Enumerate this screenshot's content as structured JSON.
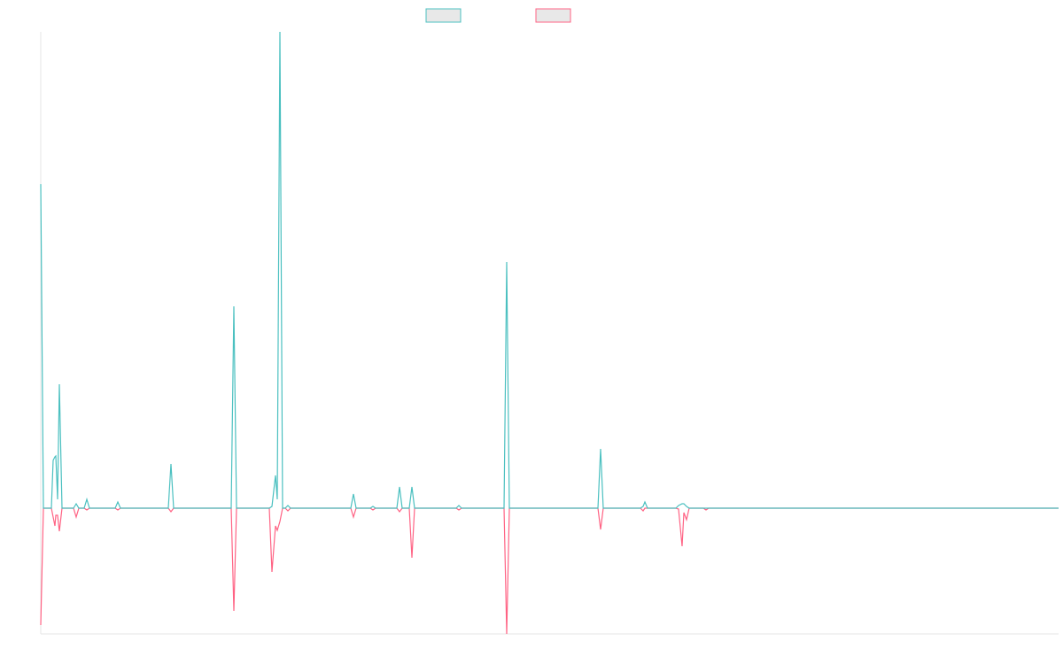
{
  "chart_data": {
    "type": "line",
    "x": [
      0,
      3,
      12,
      14,
      16,
      17,
      19,
      21,
      24,
      37,
      40,
      43,
      49,
      52,
      55,
      84,
      87,
      90,
      144,
      147,
      150,
      215,
      218,
      221,
      258,
      261,
      265,
      267,
      270,
      273,
      276,
      279,
      282,
      350,
      353,
      356,
      372,
      375,
      378,
      402,
      405,
      408,
      416,
      419,
      422,
      469,
      472,
      475,
      523,
      526,
      529,
      629,
      632,
      635,
      677,
      680,
      682,
      685,
      717,
      720,
      724,
      726,
      729,
      732,
      748,
      751,
      754,
      1149
    ],
    "series": [
      {
        "color": "#4bc0c0",
        "values": [
          366,
          0,
          0,
          54,
          58,
          59,
          10,
          140,
          0,
          0,
          5,
          0,
          0,
          10,
          0,
          0,
          7,
          0,
          0,
          50,
          0,
          0,
          228,
          0,
          0,
          2,
          37,
          10,
          538,
          0,
          0,
          3,
          0,
          0,
          16,
          0,
          0,
          2,
          0,
          0,
          24,
          0,
          0,
          24,
          0,
          0,
          3,
          0,
          0,
          278,
          0,
          0,
          67,
          0,
          0,
          2,
          7,
          0,
          0,
          3,
          5,
          5,
          2,
          0,
          0,
          0,
          0,
          0
        ]
      },
      {
        "color": "#ff6384",
        "values": [
          -132,
          0,
          0,
          -10,
          -20,
          -8,
          -8,
          -26,
          0,
          0,
          -10,
          0,
          0,
          -2,
          0,
          0,
          -2,
          0,
          0,
          -4,
          0,
          0,
          -116,
          0,
          0,
          -72,
          -20,
          -25,
          -15,
          0,
          0,
          -3,
          0,
          0,
          -10,
          0,
          0,
          -2,
          0,
          0,
          -4,
          0,
          0,
          -56,
          0,
          0,
          -2,
          0,
          0,
          -142,
          0,
          0,
          -24,
          0,
          0,
          -3,
          0,
          0,
          0,
          -1,
          -43,
          -5,
          -13,
          0,
          0,
          -2,
          0,
          0
        ]
      }
    ],
    "xlim": [
      0,
      1149
    ],
    "ylim": [
      -142,
      538
    ]
  }
}
